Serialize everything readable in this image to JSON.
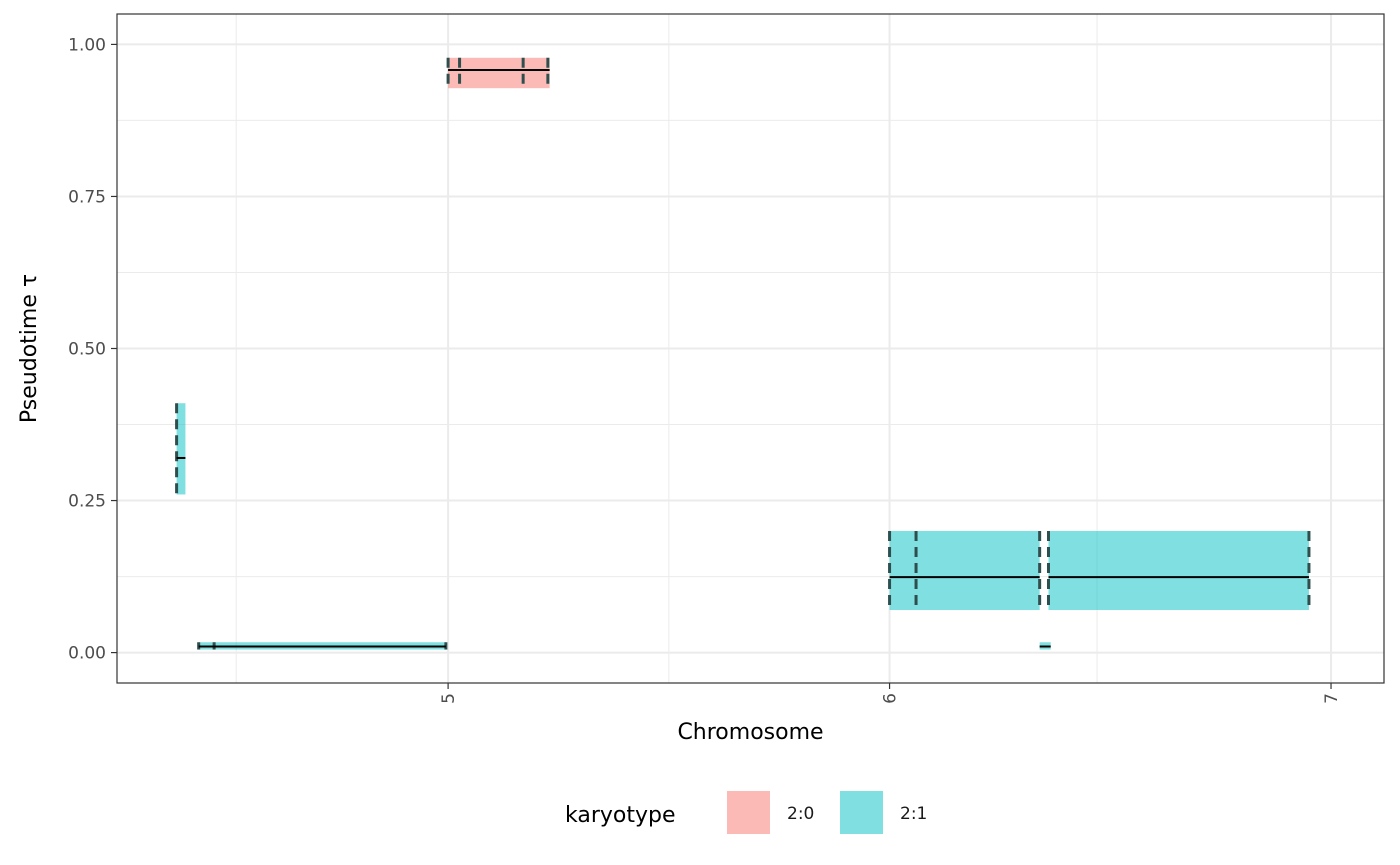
{
  "chart_data": {
    "type": "segment-ribbons",
    "xlabel": "Chromosome",
    "ylabel": "Pseudotime τ",
    "ylim": [
      -0.05,
      1.05
    ],
    "xlim": [
      4.25,
      7.12
    ],
    "x_ticks": [
      {
        "value": 5,
        "label": "5"
      },
      {
        "value": 6,
        "label": "6"
      },
      {
        "value": 7,
        "label": "7"
      }
    ],
    "x_minor_ticks": [
      4.52,
      5.5,
      6.47
    ],
    "y_ticks": [
      {
        "value": 0,
        "label": "0.00"
      },
      {
        "value": 0.25,
        "label": "0.25"
      },
      {
        "value": 0.5,
        "label": "0.50"
      },
      {
        "value": 0.75,
        "label": "0.75"
      },
      {
        "value": 1.0,
        "label": "1.00"
      }
    ],
    "y_minor_ticks": [
      0.125,
      0.375,
      0.625,
      0.875
    ],
    "grid": true,
    "legend": {
      "title": "karyotype",
      "position": "bottom",
      "entries": [
        {
          "label": "2:0",
          "color": "#F8766D"
        },
        {
          "label": "2:1",
          "color": "#00BFC4"
        }
      ]
    },
    "segments": [
      {
        "karyotype": "2:1",
        "x_start": 4.385,
        "x_end": 4.405,
        "y_low": 0.26,
        "y_high": 0.41,
        "median": 0.32,
        "cuts": [
          4.385
        ]
      },
      {
        "karyotype": "2:1",
        "x_start": 4.435,
        "x_end": 4.995,
        "y_low": 0.005,
        "y_high": 0.017,
        "median": 0.01,
        "cuts": [
          4.435,
          4.47,
          4.995
        ]
      },
      {
        "karyotype": "2:0",
        "x_start": 5.0,
        "x_end": 5.23,
        "y_low": 0.928,
        "y_high": 0.978,
        "median": 0.958,
        "cuts": [
          5.0,
          5.026,
          5.17,
          5.226
        ]
      },
      {
        "karyotype": "2:1",
        "x_start": 6.0,
        "x_end": 6.34,
        "y_low": 0.07,
        "y_high": 0.2,
        "median": 0.124,
        "cuts": [
          6.0,
          6.06,
          6.34
        ]
      },
      {
        "karyotype": "2:1",
        "x_start": 6.34,
        "x_end": 6.365,
        "y_low": 0.005,
        "y_high": 0.017,
        "median": 0.01,
        "cuts": []
      },
      {
        "karyotype": "2:1",
        "x_start": 6.36,
        "x_end": 6.95,
        "y_low": 0.07,
        "y_high": 0.2,
        "median": 0.124,
        "cuts": [
          6.36,
          6.95
        ]
      }
    ]
  }
}
